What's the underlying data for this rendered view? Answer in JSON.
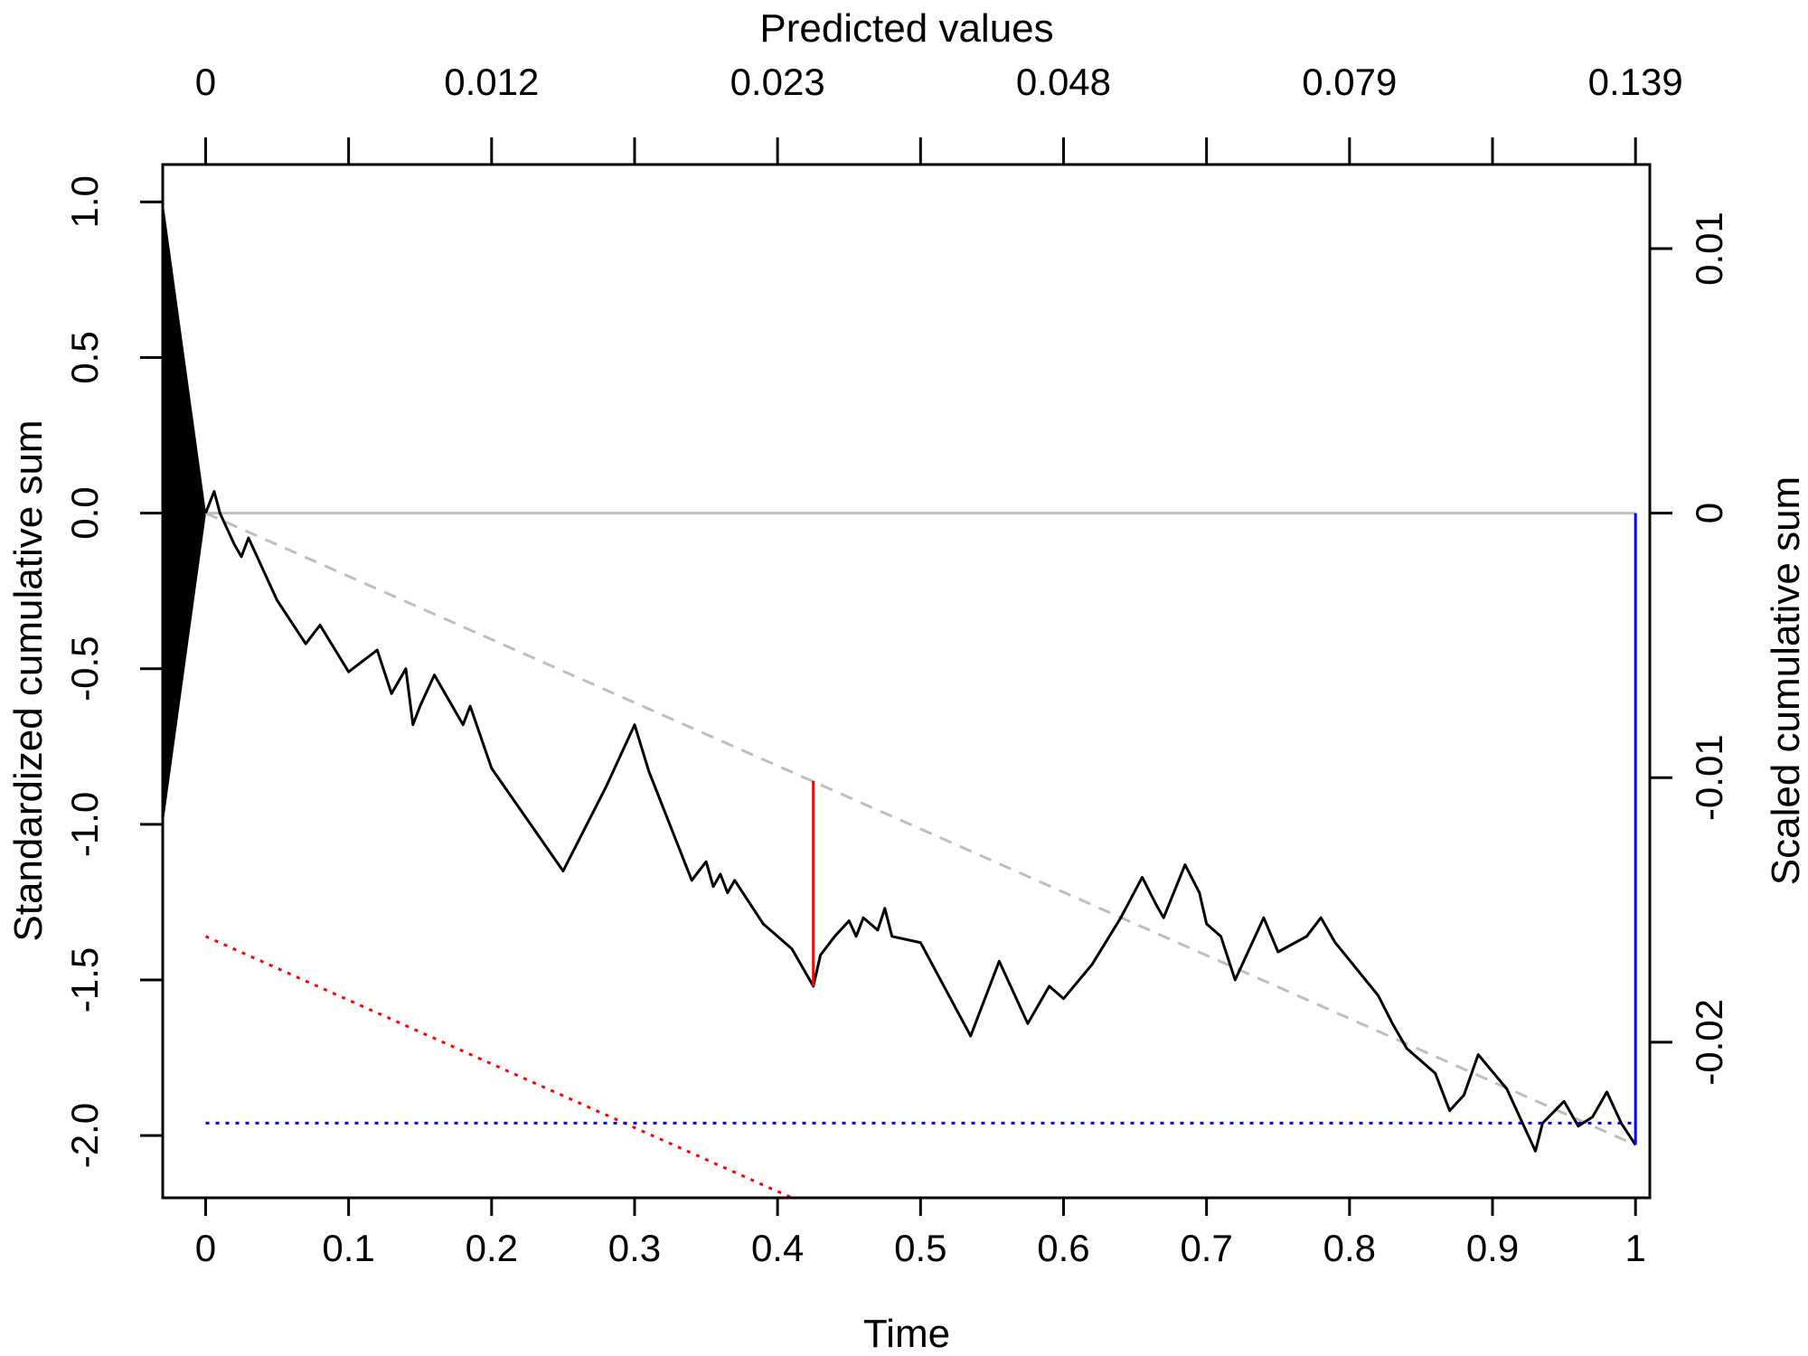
{
  "chart_data": {
    "type": "line",
    "title": "",
    "xlabel": "Time",
    "x2label": "Predicted values",
    "ylabel": "Standardized cumulative sum",
    "y2label": "Scaled cumulative sum",
    "xlim": [
      -0.03,
      1.01
    ],
    "ylim": [
      -2.2,
      1.12
    ],
    "x_ticks": [
      0,
      0.1,
      0.2,
      0.3,
      0.4,
      0.5,
      0.6,
      0.7,
      0.8,
      0.9,
      1
    ],
    "x_tick_labels": [
      "0",
      "0.1",
      "0.2",
      "0.3",
      "0.4",
      "0.5",
      "0.6",
      "0.7",
      "0.8",
      "0.9",
      "1"
    ],
    "y_ticks": [
      1.0,
      0.5,
      0.0,
      -0.5,
      -1.0,
      -1.5,
      -2.0
    ],
    "y_tick_labels": [
      "1.0",
      "0.5",
      "0.0",
      "-0.5",
      "-1.0",
      "-1.5",
      "-2.0"
    ],
    "x2_ticks": [
      0,
      0.1,
      0.2,
      0.3,
      0.4,
      0.5,
      0.6,
      0.7,
      0.8,
      0.9,
      1
    ],
    "x2_tick_labels": [
      "0",
      "",
      "0.012",
      "",
      "0.023",
      "",
      "0.048",
      "",
      "0.079",
      "",
      "0.139"
    ],
    "y2_ticks_std": [
      0.85,
      0.0,
      -0.85,
      -1.7
    ],
    "y2_tick_labels": [
      "0.01",
      "0",
      "-0.01",
      "-0.02"
    ],
    "grid": false,
    "legend": "none",
    "colors": {
      "path": "#000000",
      "zero_line": "#bebebe",
      "drift_line": "#bebebe",
      "max_deviation": "#ff0000",
      "deviation_boundary": "#ff0000",
      "endpoint": "#0000ff",
      "endpoint_boundary": "#0000ff",
      "left_wedge": "#000000"
    },
    "series": [
      {
        "x": [
          0,
          0.006,
          0.01,
          0.02,
          0.025,
          0.03,
          0.035,
          0.05,
          0.07,
          0.08,
          0.1,
          0.12,
          0.13,
          0.14,
          0.145,
          0.15,
          0.16,
          0.165,
          0.18,
          0.185,
          0.2,
          0.25,
          0.28,
          0.3,
          0.31,
          0.34,
          0.35,
          0.355,
          0.36,
          0.365,
          0.37,
          0.39,
          0.41,
          0.425,
          0.43,
          0.44,
          0.45,
          0.455,
          0.46,
          0.47,
          0.475,
          0.48,
          0.5,
          0.535,
          0.555,
          0.575,
          0.59,
          0.6,
          0.62,
          0.64,
          0.655,
          0.665,
          0.67,
          0.685,
          0.695,
          0.7,
          0.71,
          0.72,
          0.74,
          0.75,
          0.77,
          0.78,
          0.79,
          0.82,
          0.83,
          0.84,
          0.86,
          0.87,
          0.88,
          0.89,
          0.91,
          0.93,
          0.935,
          0.95,
          0.96,
          0.97,
          0.98,
          0.99,
          1.0
        ],
        "y": [
          0.0,
          0.07,
          0.0,
          -0.1,
          -0.14,
          -0.08,
          -0.13,
          -0.28,
          -0.42,
          -0.36,
          -0.51,
          -0.44,
          -0.58,
          -0.5,
          -0.68,
          -0.62,
          -0.52,
          -0.56,
          -0.68,
          -0.62,
          -0.82,
          -1.15,
          -0.88,
          -0.68,
          -0.83,
          -1.18,
          -1.12,
          -1.2,
          -1.16,
          -1.22,
          -1.18,
          -1.32,
          -1.4,
          -1.52,
          -1.42,
          -1.36,
          -1.31,
          -1.36,
          -1.3,
          -1.34,
          -1.27,
          -1.36,
          -1.38,
          -1.68,
          -1.44,
          -1.64,
          -1.52,
          -1.56,
          -1.45,
          -1.3,
          -1.17,
          -1.26,
          -1.3,
          -1.13,
          -1.22,
          -1.32,
          -1.36,
          -1.5,
          -1.3,
          -1.41,
          -1.36,
          -1.3,
          -1.38,
          -1.55,
          -1.64,
          -1.72,
          -1.8,
          -1.92,
          -1.87,
          -1.74,
          -1.85,
          -2.05,
          -1.96,
          -1.89,
          -1.97,
          -1.94,
          -1.86,
          -1.96,
          -2.03
        ]
      },
      {
        "x": [
          0,
          1.0
        ],
        "y": [
          0.0,
          -2.03
        ]
      },
      {
        "x": [
          0,
          0.41
        ],
        "y": [
          -1.36,
          -2.2
        ]
      },
      {
        "x": [
          0,
          1.0
        ],
        "y": [
          -1.96,
          -1.96
        ]
      }
    ],
    "max_deviation_segment": {
      "x": 0.425,
      "y": [
        -1.52,
        -0.86
      ]
    },
    "endpoint_segment": {
      "x": 1.0,
      "y": [
        0.0,
        -2.03
      ]
    },
    "zero_line_range": [
      0,
      1.0
    ],
    "left_wedge": {
      "x": [
        -0.03,
        0
      ],
      "y_top": [
        1.0,
        0.0
      ],
      "y_bottom": [
        -1.0,
        0.0
      ]
    }
  }
}
